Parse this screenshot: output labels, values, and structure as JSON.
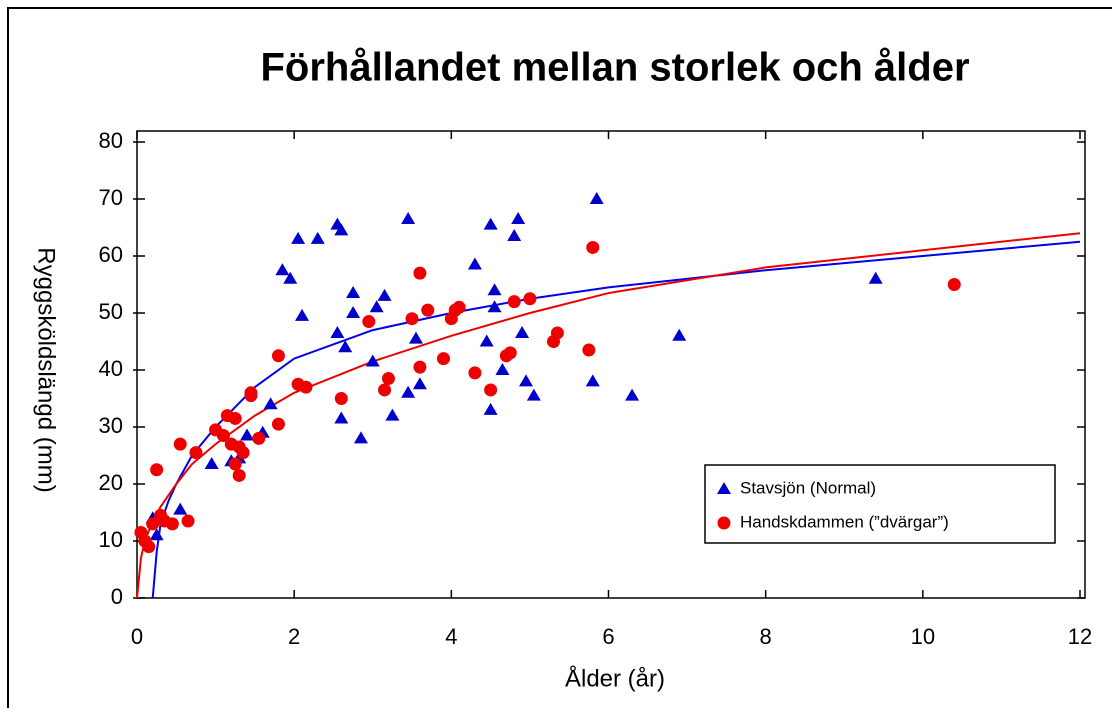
{
  "chart_data": {
    "type": "scatter",
    "title": "Förhållandet mellan storlek och ålder",
    "xlabel": "Ålder  (år)",
    "ylabel": "Ryggsköldslängd  (mm)",
    "xlim": [
      0,
      12
    ],
    "xticks": [
      0,
      2,
      4,
      6,
      8,
      10,
      12
    ],
    "ylim": [
      0,
      80
    ],
    "yticks": [
      0,
      10,
      20,
      30,
      40,
      50,
      60,
      70,
      80
    ],
    "legend": "lower right",
    "series": [
      {
        "name": "Stavsjön (Normal)",
        "color": "#0000cc",
        "marker": "triangle",
        "x": [
          0.2,
          0.25,
          0.55,
          0.95,
          1.2,
          1.3,
          1.4,
          1.6,
          1.7,
          1.85,
          1.95,
          2.05,
          2.1,
          2.3,
          2.55,
          2.6,
          2.55,
          2.6,
          2.65,
          2.75,
          2.75,
          2.85,
          3.0,
          3.05,
          3.15,
          3.25,
          3.45,
          3.45,
          3.55,
          3.6,
          4.3,
          4.45,
          4.5,
          4.5,
          4.55,
          4.55,
          4.65,
          4.8,
          4.85,
          4.9,
          4.95,
          5.05,
          5.8,
          5.85,
          6.3,
          6.9,
          9.4
        ],
        "values": [
          14,
          11,
          15.5,
          23.5,
          24,
          24.5,
          28.5,
          29,
          34,
          57.5,
          56,
          63,
          49.5,
          63,
          65.5,
          64.5,
          46.5,
          31.5,
          44,
          53.5,
          50,
          28,
          41.5,
          51,
          53,
          32,
          66.5,
          36,
          45.5,
          37.5,
          58.5,
          45,
          33,
          65.5,
          54,
          51,
          40,
          63.5,
          66.5,
          46.5,
          38,
          35.5,
          38,
          70,
          35.5,
          46,
          56
        ]
      },
      {
        "name": "Handskdammen (”dvärgar”)",
        "color": "#ee0000",
        "marker": "circle",
        "x": [
          0.05,
          0.1,
          0.15,
          0.2,
          0.25,
          0.3,
          0.35,
          0.45,
          0.55,
          0.65,
          0.75,
          1.0,
          1.1,
          1.15,
          1.2,
          1.25,
          1.25,
          1.3,
          1.3,
          1.35,
          1.45,
          1.45,
          1.55,
          1.8,
          1.8,
          2.05,
          2.15,
          2.6,
          2.95,
          3.15,
          3.2,
          3.5,
          3.6,
          3.6,
          3.7,
          3.9,
          4.0,
          4.05,
          4.1,
          4.3,
          4.5,
          4.7,
          4.75,
          4.8,
          5.0,
          5.3,
          5.35,
          5.75,
          5.8,
          10.4
        ],
        "values": [
          11.5,
          10,
          9,
          13,
          22.5,
          14.5,
          13.5,
          13,
          27,
          13.5,
          25.5,
          29.5,
          28.5,
          32,
          27,
          31.5,
          23.5,
          21.5,
          26.5,
          25.5,
          36,
          35.5,
          28,
          42.5,
          30.5,
          37.5,
          37,
          35,
          48.5,
          36.5,
          38.5,
          49,
          57,
          40.5,
          50.5,
          42,
          49,
          50.5,
          51,
          39.5,
          36.5,
          42.5,
          43,
          52,
          52.5,
          45,
          46.5,
          43.5,
          61.5,
          55
        ]
      }
    ],
    "trendlines": [
      {
        "color": "#0000ee",
        "x": [
          0.2,
          0.25,
          0.3,
          0.4,
          0.5,
          0.7,
          1,
          1.5,
          2,
          3,
          4,
          5,
          6,
          8,
          10,
          12
        ],
        "values": [
          0,
          8,
          13,
          17,
          20,
          25,
          30,
          37,
          42,
          47,
          50,
          52.5,
          54.5,
          57.5,
          60,
          62.5
        ]
      },
      {
        "color": "#ee0000",
        "x": [
          0,
          0.05,
          0.1,
          0.2,
          0.3,
          0.5,
          0.7,
          1,
          1.5,
          2,
          3,
          4,
          5,
          6,
          8,
          10,
          12
        ],
        "values": [
          0,
          7,
          10,
          13.5,
          16,
          20,
          23.5,
          27,
          32,
          36,
          41.5,
          46,
          50,
          53.5,
          58,
          61,
          64
        ]
      }
    ]
  }
}
